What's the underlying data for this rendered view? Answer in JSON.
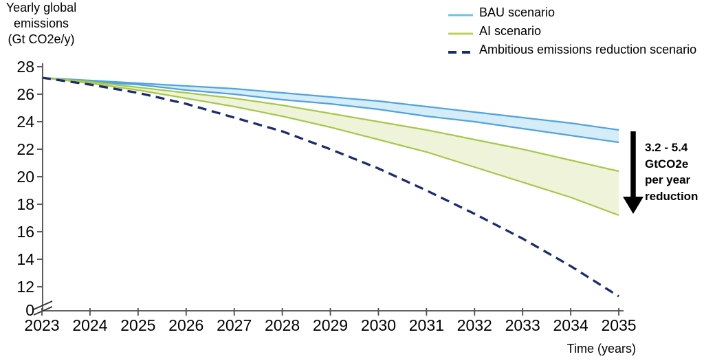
{
  "y_axis_title": {
    "lines": [
      "Yearly global",
      "emissions",
      "(Gt CO2e/y)"
    ]
  },
  "x_axis_title": "Time (years)",
  "legend": {
    "items": [
      {
        "label": "BAU scenario",
        "color": "#6FC2EA",
        "style": "solid"
      },
      {
        "label": "AI scenario",
        "color": "#B7D35C",
        "style": "solid"
      },
      {
        "label": "Ambitious emissions reduction scenario",
        "color": "#1C2B70",
        "style": "dashed"
      }
    ]
  },
  "annotation": {
    "lines": [
      "3.2 - 5.4",
      "GtCO2e",
      "per year",
      "reduction"
    ],
    "arrow": "down-arrow"
  },
  "axis": {
    "y_ticks": [
      "28",
      "26",
      "24",
      "22",
      "20",
      "18",
      "16",
      "14",
      "12"
    ],
    "y_break_label": "0",
    "x_ticks": [
      "2023",
      "2024",
      "2025",
      "2026",
      "2027",
      "2028",
      "2029",
      "2030",
      "2031",
      "2032",
      "2033",
      "2034",
      "2035"
    ]
  },
  "chart_data": {
    "type": "area",
    "title": "",
    "xlabel": "Time (years)",
    "ylabel": "Yearly global emissions (Gt CO2e/y)",
    "x": [
      2023,
      2024,
      2025,
      2026,
      2027,
      2028,
      2029,
      2030,
      2031,
      2032,
      2033,
      2034,
      2035
    ],
    "ylim": [
      0,
      28
    ],
    "y_axis_break_between": [
      0,
      12
    ],
    "grid": false,
    "legend_position": "top-right",
    "series": [
      {
        "name": "BAU scenario",
        "type": "band",
        "edge_color": "#4FA3DC",
        "fill_color": "#D5ECF9",
        "upper": [
          27.2,
          27.0,
          26.8,
          26.6,
          26.4,
          26.1,
          25.8,
          25.5,
          25.1,
          24.7,
          24.3,
          23.9,
          23.4
        ],
        "lower": [
          27.2,
          26.9,
          26.7,
          26.3,
          26.0,
          25.6,
          25.3,
          24.9,
          24.4,
          24.0,
          23.5,
          23.0,
          22.5
        ]
      },
      {
        "name": "AI scenario",
        "type": "band",
        "edge_color": "#A6C84B",
        "fill_color": "#EFF3D9",
        "upper": [
          27.2,
          26.9,
          26.5,
          26.1,
          25.7,
          25.2,
          24.6,
          24.0,
          23.4,
          22.7,
          22.0,
          21.2,
          20.4
        ],
        "lower": [
          27.2,
          26.8,
          26.3,
          25.7,
          25.1,
          24.4,
          23.6,
          22.7,
          21.8,
          20.7,
          19.6,
          18.5,
          17.2
        ]
      },
      {
        "name": "Ambitious emissions reduction scenario",
        "type": "line",
        "line_style": "dashed",
        "color": "#1C2B70",
        "values": [
          27.2,
          26.7,
          26.1,
          25.3,
          24.3,
          23.3,
          22.0,
          20.6,
          19.0,
          17.3,
          15.5,
          13.5,
          11.3
        ]
      }
    ],
    "annotation": "3.2 - 5.4 GtCO2e per year reduction"
  }
}
